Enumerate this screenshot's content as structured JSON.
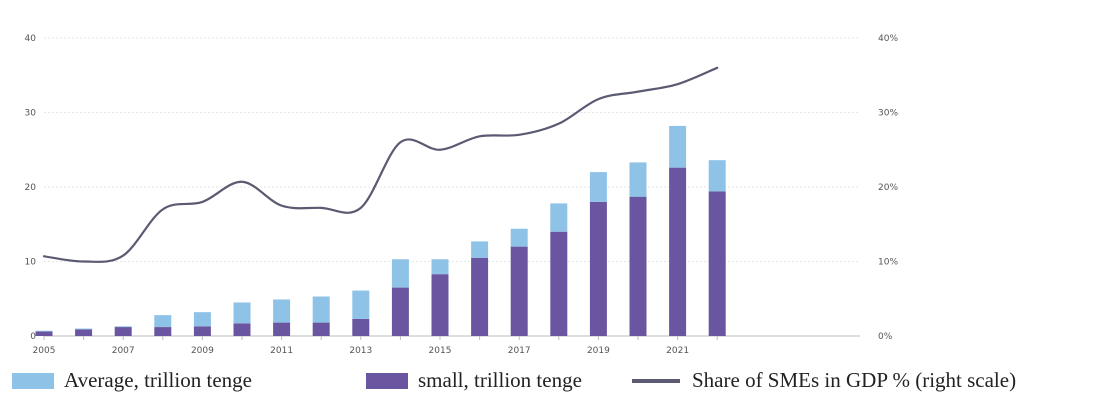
{
  "chart_data": {
    "type": "bar",
    "title": "",
    "x": [
      2005,
      2006,
      2007,
      2008,
      2009,
      2010,
      2011,
      2012,
      2013,
      2014,
      2015,
      2016,
      2017,
      2018,
      2019,
      2020,
      2021,
      2022
    ],
    "x_tick_labels": [
      "2005",
      "2007",
      "2009",
      "2011",
      "2013",
      "2015",
      "2017",
      "2019",
      "2021"
    ],
    "y_left": {
      "ylim": [
        0,
        40
      ],
      "ticks": [
        "0",
        "10",
        "20",
        "30",
        "40"
      ]
    },
    "y_right": {
      "ylim": [
        0,
        40
      ],
      "ticks": [
        "0%",
        "10%",
        "20%",
        "30%",
        "40%"
      ]
    },
    "stacked": true,
    "grid": true,
    "legend_position": "bottom",
    "series": [
      {
        "name": "small, trillion tenge",
        "kind": "bar",
        "axis": "left",
        "color": "#6a56a0",
        "values": [
          0.6,
          0.9,
          1.2,
          1.2,
          1.3,
          1.7,
          1.8,
          1.8,
          2.3,
          6.5,
          8.3,
          10.5,
          12.0,
          14.0,
          18.0,
          18.7,
          22.6,
          19.4
        ]
      },
      {
        "name": "Average, trillion tenge",
        "kind": "bar",
        "axis": "left",
        "color": "#8ec2e6",
        "values": [
          0.1,
          0.1,
          0.1,
          1.6,
          1.9,
          2.8,
          3.1,
          3.5,
          3.8,
          3.8,
          2.0,
          2.2,
          2.4,
          3.8,
          4.0,
          4.6,
          5.6,
          4.2
        ]
      },
      {
        "name": "Share of SMEs in GDP % (right scale)",
        "kind": "line",
        "axis": "right",
        "color": "#5a5a72",
        "values": [
          10.7,
          10.0,
          10.8,
          17.0,
          18.0,
          20.7,
          17.5,
          17.2,
          17.2,
          26.0,
          25.0,
          26.8,
          27.0,
          28.5,
          31.8,
          32.8,
          33.8,
          36.0
        ]
      }
    ]
  },
  "legend": {
    "average": "Average, trillion tenge",
    "small": "small, trillion tenge",
    "share": "Share of SMEs in GDP % (right scale)"
  }
}
